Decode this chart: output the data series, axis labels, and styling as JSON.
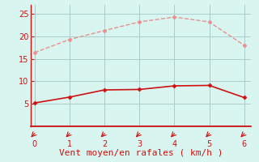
{
  "x": [
    0,
    1,
    2,
    3,
    4,
    5,
    6
  ],
  "y_upper": [
    16.4,
    19.3,
    21.3,
    23.2,
    24.3,
    23.2,
    18.0
  ],
  "y_lower": [
    5.2,
    6.5,
    8.1,
    8.2,
    9.0,
    9.1,
    6.4
  ],
  "upper_color": "#e89090",
  "lower_color": "#cc1111",
  "background_color": "#d8f5f0",
  "grid_color": "#aacccc",
  "xlabel": "Vent moyen/en rafales ( km/h )",
  "xlabel_color": "#cc1111",
  "tick_color": "#cc1111",
  "spine_color": "#cc1111",
  "ylim": [
    0,
    27
  ],
  "xlim": [
    -0.1,
    6.2
  ],
  "yticks": [
    5,
    10,
    15,
    20,
    25
  ],
  "xticks": [
    0,
    1,
    2,
    3,
    4,
    5,
    6
  ],
  "marker": "D",
  "marker_size": 2.5,
  "upper_linewidth": 1.0,
  "lower_linewidth": 1.2,
  "xlabel_fontsize": 8,
  "tick_labelsize": 7
}
